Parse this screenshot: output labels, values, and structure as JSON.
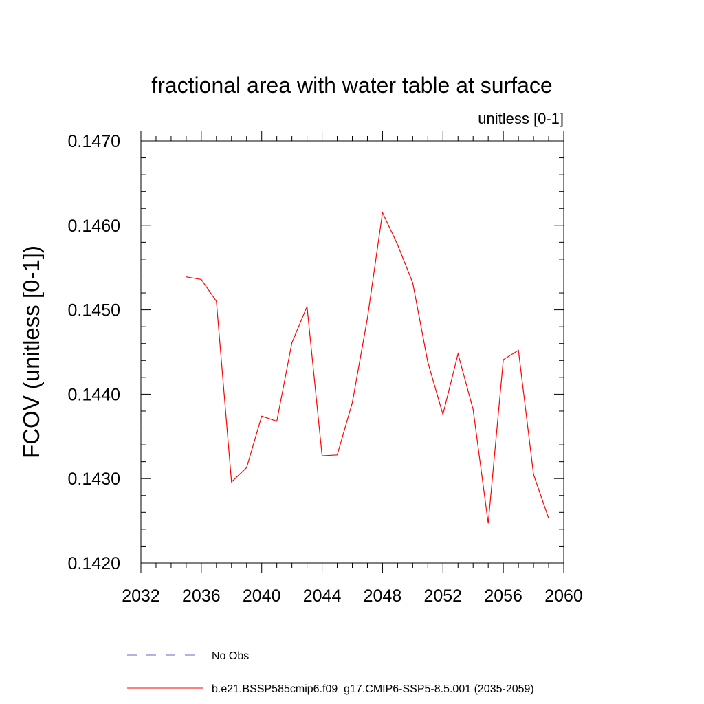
{
  "chart_data": {
    "type": "line",
    "title": "fractional area with water table at surface",
    "units_label": "unitless [0-1]",
    "ylabel": "FCOV  (unitless [0-1])",
    "xlabel": "",
    "xlim": [
      2032,
      2060
    ],
    "ylim": [
      0.142,
      0.147
    ],
    "x_ticks": [
      2032,
      2036,
      2040,
      2044,
      2048,
      2052,
      2056,
      2060
    ],
    "x_tick_labels": [
      "2032",
      "2036",
      "2040",
      "2044",
      "2048",
      "2052",
      "2056",
      "2060"
    ],
    "y_ticks": [
      0.142,
      0.143,
      0.144,
      0.145,
      0.146,
      0.147
    ],
    "y_tick_labels": [
      "0.1420",
      "0.1430",
      "0.1440",
      "0.1450",
      "0.1460",
      "0.1470"
    ],
    "grid": false,
    "legend_position": "bottom",
    "series": [
      {
        "name": "b.e21.BSSP585cmip6.f09_g17.CMIP6-SSP5-8.5.001 (2035-2059)",
        "color": "#ff0000",
        "style": "solid",
        "x": [
          2035,
          2036,
          2037,
          2038,
          2039,
          2040,
          2041,
          2042,
          2043,
          2044,
          2045,
          2046,
          2047,
          2048,
          2049,
          2050,
          2051,
          2052,
          2053,
          2054,
          2055,
          2056,
          2057,
          2058,
          2059
        ],
        "values": [
          0.14539,
          0.14536,
          0.1451,
          0.14296,
          0.14313,
          0.14374,
          0.14368,
          0.14461,
          0.14504,
          0.14327,
          0.14328,
          0.1439,
          0.1449,
          0.14615,
          0.14577,
          0.14532,
          0.14438,
          0.14376,
          0.14448,
          0.14382,
          0.14247,
          0.14441,
          0.14452,
          0.14305,
          0.14253
        ]
      },
      {
        "name": "No Obs",
        "color": "#6666cc",
        "style": "dashed",
        "x": [],
        "values": []
      }
    ]
  }
}
